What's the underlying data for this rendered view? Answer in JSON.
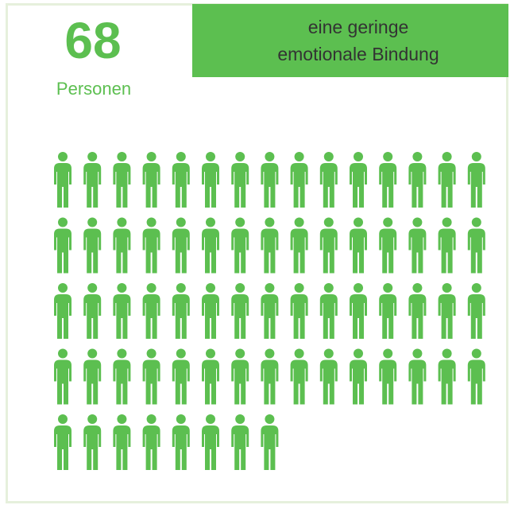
{
  "chart_data": {
    "type": "pictogram",
    "value": 68,
    "unit_label": "Personen",
    "title_lines": [
      "eine geringe",
      "emotionale Bindung"
    ],
    "color": "#5cbf50"
  }
}
